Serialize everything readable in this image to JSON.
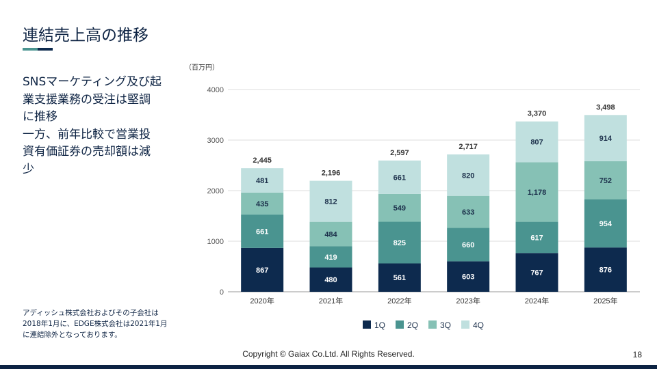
{
  "title": "連結売上高の推移",
  "body_lines": [
    "SNSマーケティング及び起",
    "業支援業務の受注は堅調",
    "に推移",
    "一方、前年比較で営業投",
    "資有価証券の売却額は減",
    "少"
  ],
  "note_lines": [
    "アディッシュ株式会社およびその子会社は",
    "2018年1月に、EDGE株式会社は2021年1月",
    "に連結除外となっております。"
  ],
  "footer": {
    "copyright": "Copyright © Gaiax Co.Ltd. All Rights Reserved.",
    "page": "18"
  },
  "chart_data": {
    "type": "bar",
    "stacked": true,
    "unit_label": "（百万円）",
    "categories": [
      "2020年",
      "2021年",
      "2022年",
      "2023年",
      "2024年",
      "2025年"
    ],
    "series": [
      {
        "name": "1Q",
        "color": "#0d2a4e",
        "values": [
          867,
          480,
          561,
          603,
          767,
          876
        ]
      },
      {
        "name": "2Q",
        "color": "#4a9490",
        "values": [
          661,
          419,
          825,
          660,
          617,
          954
        ]
      },
      {
        "name": "3Q",
        "color": "#86c1b5",
        "values": [
          435,
          484,
          549,
          633,
          1178,
          752
        ]
      },
      {
        "name": "4Q",
        "color": "#c0e0df",
        "values": [
          481,
          812,
          661,
          820,
          807,
          914
        ]
      }
    ],
    "totals": [
      "2,445",
      "2,196",
      "2,597",
      "2,717",
      "3,370",
      "3,498"
    ],
    "value_labels": [
      [
        "867",
        "480",
        "561",
        "603",
        "767",
        "876"
      ],
      [
        "661",
        "419",
        "825",
        "660",
        "617",
        "954"
      ],
      [
        "435",
        "484",
        "549",
        "633",
        "1,178",
        "752"
      ],
      [
        "481",
        "812",
        "661",
        "820",
        "807",
        "914"
      ]
    ],
    "ylim": [
      0,
      4000
    ],
    "yticks": [
      "0",
      "1000",
      "2000",
      "3000",
      "4000"
    ],
    "grid": true,
    "legend": "bottom"
  }
}
